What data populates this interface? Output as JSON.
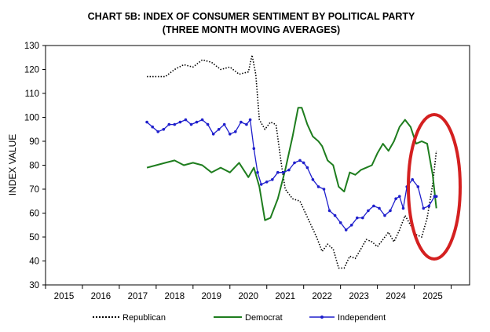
{
  "chart_data": {
    "type": "line",
    "title": "CHART 5B: INDEX OF CONSUMER SENTIMENT BY POLITICAL PARTY",
    "subtitle": "(THREE MONTH MOVING AVERAGES)",
    "ylabel": "INDEX VALUE",
    "xlabel": "",
    "ylim": [
      30,
      130
    ],
    "yticks": [
      "30",
      "40",
      "50",
      "60",
      "70",
      "80",
      "90",
      "100",
      "110",
      "120",
      "130"
    ],
    "xlim": [
      2014.5,
      2026.0
    ],
    "xticks": [
      "2015",
      "2016",
      "2017",
      "2018",
      "2019",
      "2020",
      "2021",
      "2022",
      "2023",
      "2024",
      "2025"
    ],
    "grid": false,
    "legend_position": "bottom",
    "annotation": "red ellipse highlighting 2025",
    "colors": {
      "republican": "#000000",
      "democrat": "#1e7d1e",
      "independent": "#1f1fcc",
      "ellipse": "#d42020"
    },
    "series": [
      {
        "name": "Republican",
        "style": "dotted",
        "x": [
          2017.25,
          2017.5,
          2017.75,
          2018.0,
          2018.25,
          2018.5,
          2018.75,
          2019.0,
          2019.25,
          2019.5,
          2019.75,
          2020.0,
          2020.1,
          2020.2,
          2020.3,
          2020.45,
          2020.6,
          2020.75,
          2020.9,
          2021.0,
          2021.2,
          2021.4,
          2021.55,
          2021.7,
          2021.85,
          2022.0,
          2022.15,
          2022.3,
          2022.45,
          2022.6,
          2022.75,
          2022.9,
          2023.05,
          2023.2,
          2023.35,
          2023.5,
          2023.65,
          2023.8,
          2023.95,
          2024.1,
          2024.25,
          2024.4,
          2024.55,
          2024.7,
          2024.85,
          2025.0,
          2025.1
        ],
        "y": [
          117,
          117,
          117,
          120,
          122,
          121,
          124,
          123,
          120,
          121,
          118,
          119,
          126,
          118,
          99,
          95,
          98,
          97,
          80,
          70,
          66,
          65,
          60,
          55,
          50,
          44,
          47,
          45,
          37,
          37,
          42,
          41,
          45,
          49,
          48,
          46,
          49,
          52,
          48,
          53,
          59,
          55,
          51,
          50,
          58,
          72,
          86
        ]
      },
      {
        "name": "Democrat",
        "style": "solid",
        "x": [
          2017.25,
          2017.5,
          2017.75,
          2018.0,
          2018.25,
          2018.5,
          2018.75,
          2019.0,
          2019.25,
          2019.5,
          2019.75,
          2020.0,
          2020.15,
          2020.3,
          2020.45,
          2020.6,
          2020.8,
          2021.0,
          2021.2,
          2021.35,
          2021.45,
          2021.6,
          2021.75,
          2021.9,
          2022.0,
          2022.15,
          2022.3,
          2022.45,
          2022.6,
          2022.75,
          2022.9,
          2023.05,
          2023.2,
          2023.35,
          2023.5,
          2023.65,
          2023.8,
          2023.95,
          2024.1,
          2024.25,
          2024.4,
          2024.55,
          2024.7,
          2024.85,
          2025.0,
          2025.1
        ],
        "y": [
          79,
          80,
          81,
          82,
          80,
          81,
          80,
          77,
          79,
          77,
          81,
          75,
          79,
          71,
          57,
          58,
          66,
          78,
          92,
          104,
          104,
          97,
          92,
          90,
          88,
          82,
          80,
          71,
          69,
          77,
          76,
          78,
          79,
          80,
          85,
          89,
          86,
          90,
          96,
          99,
          96,
          89,
          90,
          89,
          76,
          62
        ]
      },
      {
        "name": "Independent",
        "style": "solid-markers",
        "x": [
          2017.25,
          2017.4,
          2017.55,
          2017.7,
          2017.85,
          2018.0,
          2018.15,
          2018.3,
          2018.45,
          2018.6,
          2018.75,
          2018.9,
          2019.05,
          2019.2,
          2019.35,
          2019.5,
          2019.65,
          2019.8,
          2019.95,
          2020.05,
          2020.15,
          2020.25,
          2020.35,
          2020.5,
          2020.65,
          2020.8,
          2020.95,
          2021.1,
          2021.25,
          2021.4,
          2021.5,
          2021.6,
          2021.75,
          2021.9,
          2022.05,
          2022.2,
          2022.35,
          2022.5,
          2022.65,
          2022.8,
          2022.95,
          2023.1,
          2023.25,
          2023.4,
          2023.55,
          2023.7,
          2023.85,
          2024.0,
          2024.1,
          2024.2,
          2024.3,
          2024.45,
          2024.6,
          2024.75,
          2024.9,
          2025.05,
          2025.1
        ],
        "y": [
          98,
          96,
          94,
          95,
          97,
          97,
          98,
          99,
          97,
          98,
          99,
          97,
          93,
          95,
          97,
          93,
          94,
          98,
          97,
          99,
          87,
          77,
          72,
          73,
          74,
          77,
          77,
          78,
          81,
          82,
          81,
          79,
          74,
          71,
          70,
          61,
          59,
          56,
          53,
          55,
          58,
          58,
          61,
          63,
          62,
          59,
          61,
          66,
          67,
          62,
          71,
          74,
          71,
          62,
          63,
          67,
          67
        ]
      }
    ]
  },
  "legend": {
    "republican": "Republican",
    "democrat": "Democrat",
    "independent": "Independent"
  }
}
